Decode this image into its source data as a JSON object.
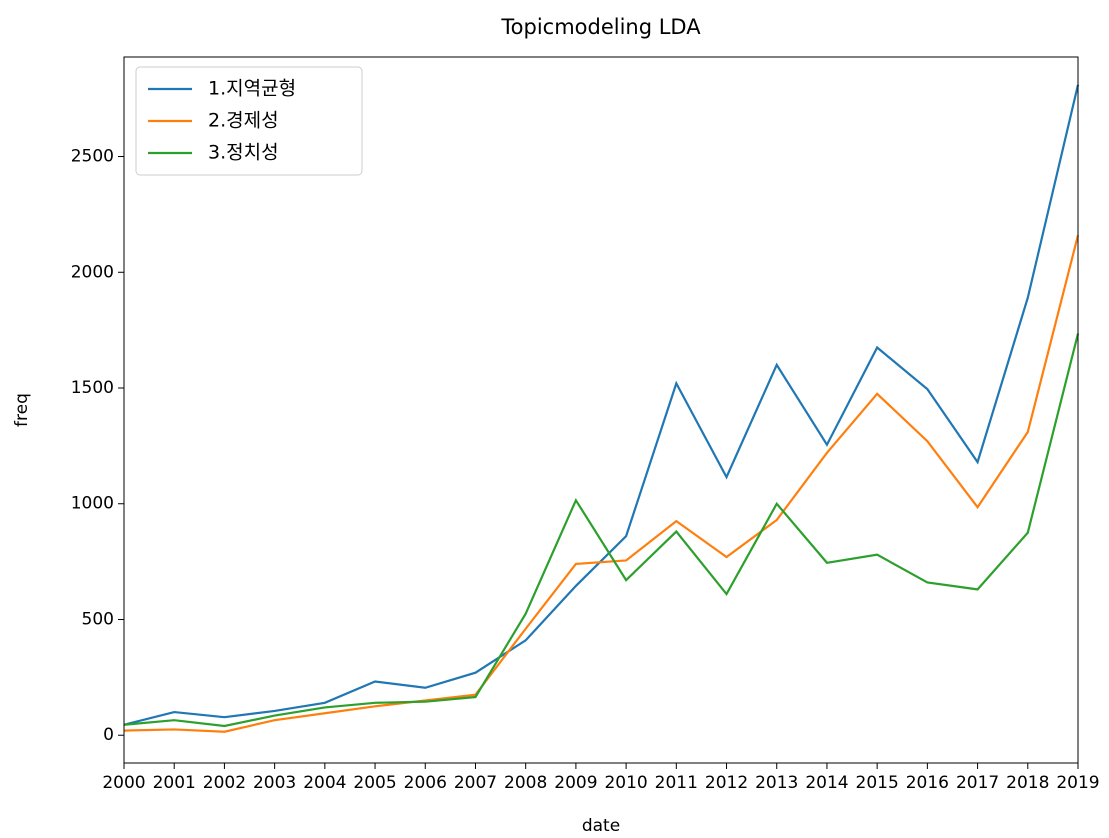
{
  "chart_data": {
    "type": "line",
    "title": "Topicmodeling LDA",
    "xlabel": "date",
    "ylabel": "freq",
    "x": [
      2000,
      2001,
      2002,
      2003,
      2004,
      2005,
      2006,
      2007,
      2008,
      2009,
      2010,
      2011,
      2012,
      2013,
      2014,
      2015,
      2016,
      2017,
      2018,
      2019
    ],
    "series": [
      {
        "name": "1.지역균형",
        "color": "#1f77b4",
        "values": [
          45,
          100,
          78,
          105,
          140,
          232,
          205,
          270,
          410,
          645,
          860,
          1520,
          1115,
          1600,
          1255,
          1675,
          1495,
          1180,
          1890,
          2810
        ]
      },
      {
        "name": "2.경제성",
        "color": "#ff7f0e",
        "values": [
          20,
          25,
          15,
          65,
          95,
          125,
          150,
          175,
          460,
          740,
          755,
          925,
          770,
          930,
          1220,
          1475,
          1270,
          985,
          1310,
          2160
        ]
      },
      {
        "name": "3.정치성",
        "color": "#2ca02c",
        "values": [
          45,
          65,
          40,
          85,
          120,
          140,
          145,
          165,
          525,
          1015,
          670,
          880,
          610,
          1000,
          745,
          780,
          660,
          630,
          875,
          1735
        ]
      }
    ],
    "xlim": [
      2000,
      2019
    ],
    "xticks": [
      2000,
      2001,
      2002,
      2003,
      2004,
      2005,
      2006,
      2007,
      2008,
      2009,
      2010,
      2011,
      2012,
      2013,
      2014,
      2015,
      2016,
      2017,
      2018,
      2019
    ],
    "ylim": [
      -120,
      2930
    ],
    "yticks": [
      0,
      500,
      1000,
      1500,
      2000,
      2500
    ],
    "grid": false,
    "legend": "upper left"
  }
}
